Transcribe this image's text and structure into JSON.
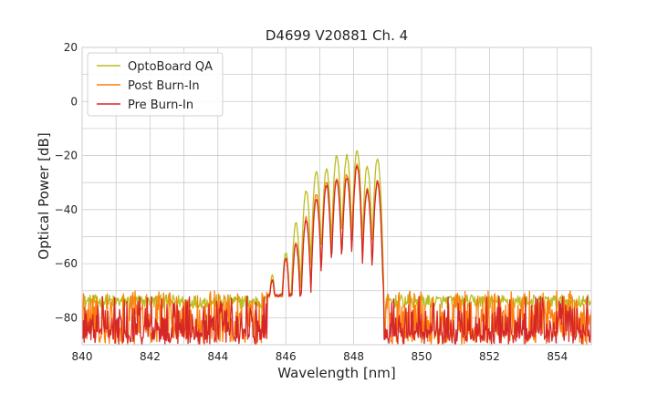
{
  "chart_data": {
    "type": "line",
    "title": "D4699 V20881 Ch. 4",
    "xlabel": "Wavelength [nm]",
    "ylabel": "Optical Power [dB]",
    "xlim": [
      840,
      855
    ],
    "ylim": [
      -90,
      20
    ],
    "xticks": [
      840,
      842,
      844,
      846,
      848,
      850,
      852,
      854
    ],
    "yticks": [
      20,
      0,
      -20,
      -40,
      -60,
      -80
    ],
    "ytick_labels": [
      "20",
      "0",
      "−20",
      "−40",
      "−60",
      "−80"
    ],
    "grid": true,
    "grid_minor": true,
    "legend_position": "top-left",
    "series": [
      {
        "name": "OptoBoard QA",
        "color": "#bcbd22",
        "noise_floor": -74,
        "peaks": [
          {
            "x": 845.6,
            "y": -64
          },
          {
            "x": 846.0,
            "y": -56
          },
          {
            "x": 846.3,
            "y": -45
          },
          {
            "x": 846.6,
            "y": -33
          },
          {
            "x": 846.9,
            "y": -26
          },
          {
            "x": 847.2,
            "y": -25
          },
          {
            "x": 847.5,
            "y": -20
          },
          {
            "x": 847.8,
            "y": -20
          },
          {
            "x": 848.1,
            "y": -18
          },
          {
            "x": 848.4,
            "y": -24
          },
          {
            "x": 848.7,
            "y": -21
          }
        ]
      },
      {
        "name": "Post Burn-In",
        "color": "#ff7f0e",
        "noise_floor": -80,
        "peaks": [
          {
            "x": 845.6,
            "y": -66
          },
          {
            "x": 846.0,
            "y": -58
          },
          {
            "x": 846.3,
            "y": -52
          },
          {
            "x": 846.6,
            "y": -43
          },
          {
            "x": 846.9,
            "y": -34
          },
          {
            "x": 847.2,
            "y": -30
          },
          {
            "x": 847.5,
            "y": -28
          },
          {
            "x": 847.8,
            "y": -27
          },
          {
            "x": 848.1,
            "y": -23
          },
          {
            "x": 848.4,
            "y": -32
          },
          {
            "x": 848.7,
            "y": -29
          }
        ]
      },
      {
        "name": "Pre Burn-In",
        "color": "#d62728",
        "noise_floor": -82,
        "peaks": [
          {
            "x": 845.6,
            "y": -66
          },
          {
            "x": 846.0,
            "y": -58
          },
          {
            "x": 846.3,
            "y": -53
          },
          {
            "x": 846.6,
            "y": -44
          },
          {
            "x": 846.9,
            "y": -36
          },
          {
            "x": 847.2,
            "y": -31
          },
          {
            "x": 847.5,
            "y": -29
          },
          {
            "x": 847.8,
            "y": -28
          },
          {
            "x": 848.1,
            "y": -24
          },
          {
            "x": 848.4,
            "y": -33
          },
          {
            "x": 848.7,
            "y": -30
          }
        ]
      }
    ]
  }
}
